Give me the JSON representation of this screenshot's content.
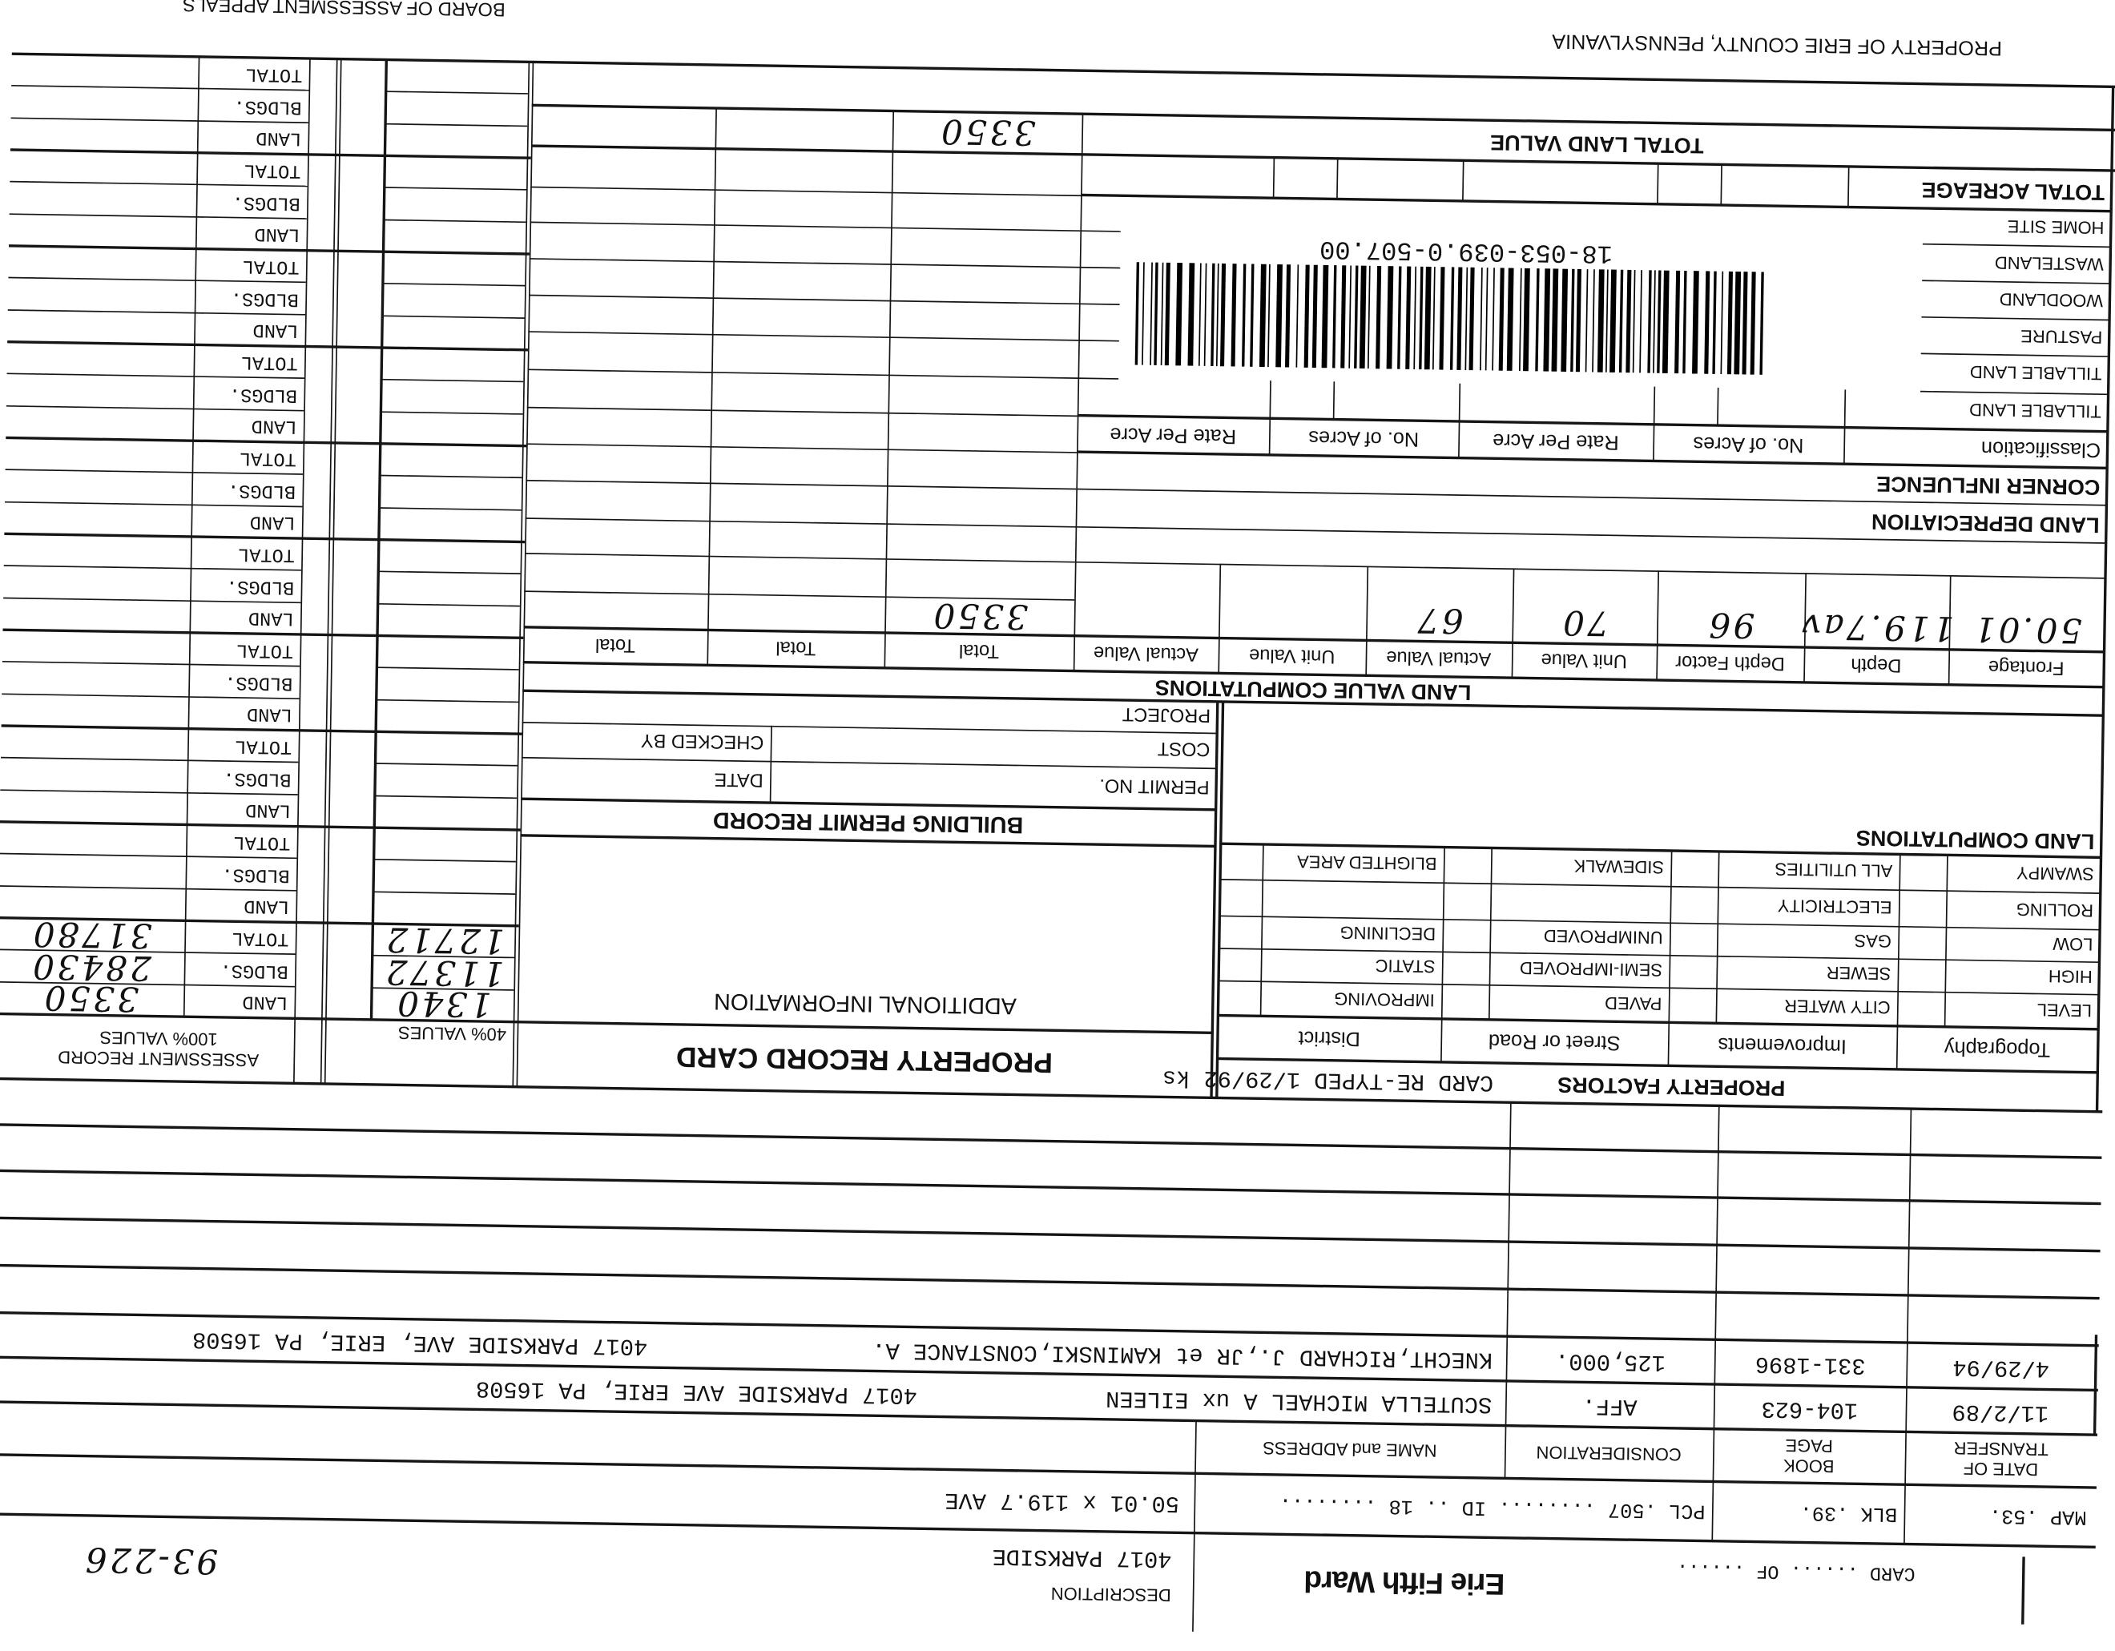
{
  "header": {
    "board_title": "BOARD OF ASSESSMENT APPEALS",
    "owner": "PROPERTY OF ERIE COUNTY, PENNSYLVANIA"
  },
  "assessment": {
    "title": "ASSESSMENT RECORD",
    "subtitle": "100% VALUES",
    "row_labels": [
      "LAND",
      "BLDGS.",
      "TOTAL"
    ],
    "values_100": {
      "land": "3350",
      "bldgs": "28430",
      "total": "31780"
    },
    "values_40_title": "40% VALUES",
    "values_40": {
      "land": "1340",
      "bldgs": "11372",
      "total": "12712"
    }
  },
  "land_value": {
    "total_land_value_label": "TOTAL LAND VALUE",
    "total_land_value": "3350",
    "title": "LAND VALUE COMPUTATIONS",
    "headers": [
      "Frontage",
      "Depth",
      "Depth Factor",
      "Unit Value",
      "Actual Value",
      "Unit Value",
      "Actual Value",
      "Total",
      "Total",
      "Total"
    ],
    "values": [
      "50.01",
      "119.7av",
      "96",
      "70",
      "67",
      "",
      "",
      "3350",
      "",
      ""
    ]
  },
  "acreage": {
    "total_label": "TOTAL ACREAGE",
    "headers": [
      "Classification",
      "No. of Acres",
      "Rate Per Acre",
      "No. of Acres",
      "Rate Per Acre"
    ],
    "rows": [
      "TILLABLE LAND",
      "TILLABLE LAND",
      "PASTURE",
      "WOODLAND",
      "WASTELAND",
      "HOME SITE"
    ],
    "corner_influence": "CORNER INFLUENCE",
    "land_depreciation": "LAND DEPRECIATION"
  },
  "barcode": {
    "number": "18-053-039.0-507.00"
  },
  "building_permit": {
    "title": "BUILDING PERMIT RECORD",
    "permit_no": "PERMIT NO.",
    "date": "DATE",
    "cost": "COST",
    "checked_by": "CHECKED BY",
    "project": "PROJECT"
  },
  "additional_info": "ADDITIONAL INFORMATION",
  "record_card_title": "PROPERTY RECORD CARD",
  "property_factors": {
    "title": "PROPERTY FACTORS",
    "retyped_note": "CARD RE-TYPED 1/29/92 ks",
    "land_computations": "LAND COMPUTATIONS",
    "headers": [
      "Topography",
      "Improvements",
      "Street or Road",
      "District"
    ],
    "rows": [
      [
        "LEVEL",
        "CITY WATER",
        "PAVED",
        "IMPROVING"
      ],
      [
        "HIGH",
        "SEWER",
        "SEMI-IMPROVED",
        "STATIC"
      ],
      [
        "LOW",
        "GAS",
        "UNIMPROVED",
        "DECLINING"
      ],
      [
        "ROLLING",
        "ELECTRICITY",
        "",
        ""
      ],
      [
        "SWAMPY",
        "ALL UTILITIES",
        "SIDEWALK",
        "BLIGHTED AREA"
      ]
    ]
  },
  "transfers": {
    "headers": [
      [
        "DATE OF",
        "TRANSFER"
      ],
      [
        "BOOK",
        "PAGE"
      ],
      "CONSIDERATION",
      "NAME and ADDRESS"
    ],
    "rows": [
      {
        "date": "11/2/89",
        "book_page": "104-623",
        "consideration": "AFF.",
        "name": "SCUTELLA MICHAEL A ux EILEEN",
        "address": "4017 PARKSIDE AVE ERIE, PA 16508"
      },
      {
        "date": "4/29/94",
        "book_page": "331-1896",
        "consideration": "125,000.",
        "name": "KNECHT,RICHARD J.,JR et KAMINSKI,CONSTANCE A.",
        "address": "4017 PARKSIDE AVE, ERIE, PA  16508"
      }
    ]
  },
  "parcel": {
    "map": "MAP .53.",
    "blk": "BLK .39.",
    "pcl_id": "PCL .507 ........ ID .. 18 ........",
    "dimensions": "50.01 x 119.7 AVE"
  },
  "card": {
    "card_of": "CARD ...... OF ......",
    "ward": "Erie Fifth Ward",
    "description_label": "DESCRIPTION",
    "description": "4017 PARKSIDE",
    "handwritten_number": "93-226"
  }
}
